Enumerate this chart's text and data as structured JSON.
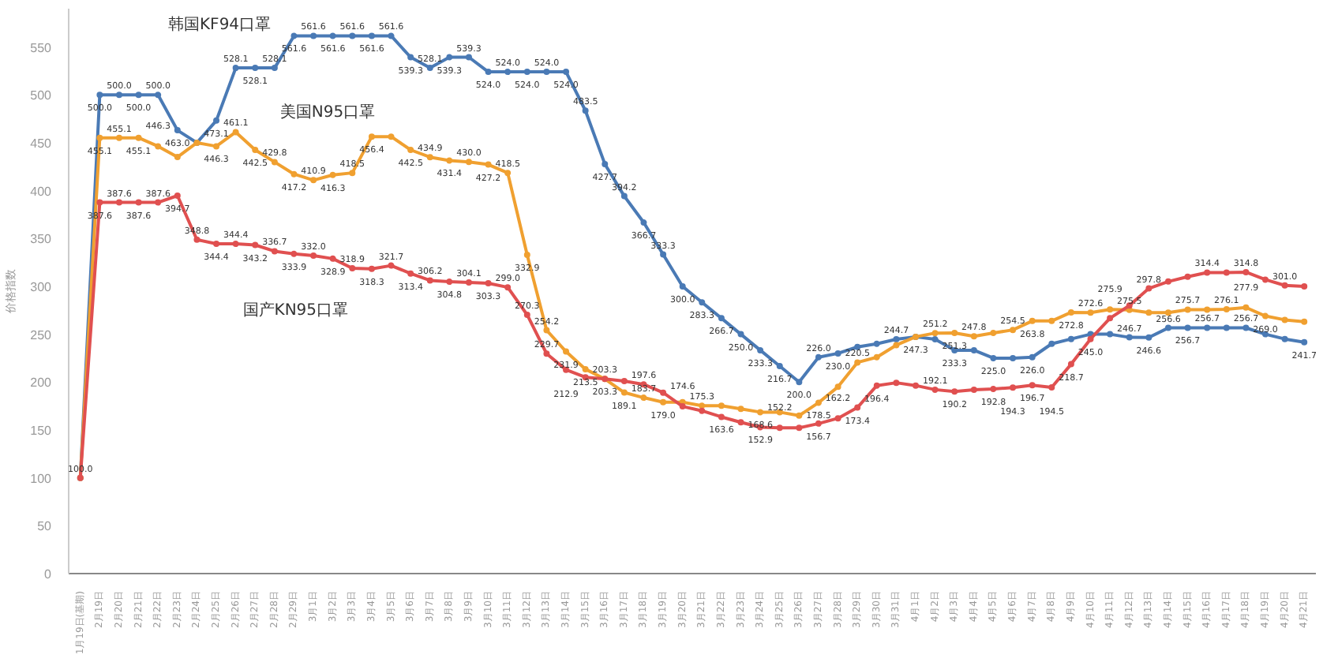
{
  "chart_data": {
    "type": "line",
    "ylabel": "价格指数",
    "categories": [
      "1月19日(基期)",
      "2月19日",
      "2月20日",
      "2月21日",
      "2月22日",
      "2月23日",
      "2月24日",
      "2月25日",
      "2月26日",
      "2月27日",
      "2月28日",
      "2月29日",
      "3月1日",
      "3月2日",
      "3月3日",
      "3月4日",
      "3月5日",
      "3月6日",
      "3月7日",
      "3月8日",
      "3月9日",
      "3月10日",
      "3月11日",
      "3月12日",
      "3月13日",
      "3月14日",
      "3月15日",
      "3月16日",
      "3月17日",
      "3月18日",
      "3月19日",
      "3月20日",
      "3月21日",
      "3月22日",
      "3月23日",
      "3月24日",
      "3月25日",
      "3月26日",
      "3月27日",
      "3月28日",
      "3月29日",
      "3月30日",
      "3月31日",
      "4月1日",
      "4月2日",
      "4月3日",
      "4月4日",
      "4月5日",
      "4月6日",
      "4月7日",
      "4月8日",
      "4月9日",
      "4月10日",
      "4月11日",
      "4月12日",
      "4月13日",
      "4月14日",
      "4月15日",
      "4月16日",
      "4月17日",
      "4月18日",
      "4月19日",
      "4月20日",
      "4月21日"
    ],
    "series": [
      {
        "name": "韩国KF94口罩",
        "color": "#4a7ab5",
        "values": [
          100.0,
          500.0,
          500.0,
          500.0,
          500.0,
          463.0,
          450.0,
          473.1,
          528.1,
          528.1,
          528.1,
          561.6,
          561.6,
          561.6,
          561.6,
          561.6,
          561.6,
          539.3,
          528.1,
          539.3,
          539.3,
          524.0,
          524.0,
          524.0,
          524.0,
          524.0,
          483.5,
          427.7,
          394.2,
          366.7,
          333.3,
          300.0,
          283.3,
          266.7,
          250.0,
          233.3,
          216.7,
          200.0,
          226.0,
          230.0,
          236.7,
          240.0,
          244.7,
          247.3,
          244.7,
          233.3,
          233.3,
          225.0,
          225.0,
          226.0,
          240.0,
          245.0,
          250.0,
          250.0,
          246.7,
          246.6,
          256.6,
          256.7,
          256.7,
          256.7,
          256.7,
          250.0,
          245.0,
          241.7
        ],
        "value_labels": [
          "100.0",
          "500.0",
          "500.0",
          "500.0",
          "500.0",
          "463.0",
          null,
          "473.1",
          "528.1",
          "528.1",
          "528.1",
          "561.6",
          "561.6",
          "561.6",
          "561.6",
          "561.6",
          "561.6",
          "539.3",
          "528.1",
          "539.3",
          "539.3",
          "524.0",
          "524.0",
          "524.0",
          "524.0",
          "524.0",
          "483.5",
          "427.7",
          "394.2",
          "366.7",
          "333.3",
          "300.0",
          "283.3",
          "266.7",
          "250.0",
          "233.3",
          "216.7",
          "200.0",
          "226.0",
          "230.0",
          null,
          null,
          "244.7",
          "247.3",
          null,
          "233.3",
          null,
          "225.0",
          null,
          "226.0",
          null,
          null,
          null,
          null,
          "246.7",
          "246.6",
          "256.6",
          "256.7",
          "256.7",
          null,
          "256.7",
          null,
          null,
          "241.7"
        ]
      },
      {
        "name": "美国N95口罩",
        "color": "#f0a030",
        "values": [
          100.0,
          455.1,
          455.1,
          455.1,
          446.3,
          435.0,
          450.0,
          446.3,
          461.1,
          442.5,
          429.8,
          417.2,
          410.9,
          416.3,
          418.5,
          456.4,
          456.4,
          442.5,
          434.9,
          431.4,
          430.0,
          427.2,
          418.5,
          332.9,
          254.2,
          231.9,
          213.5,
          203.3,
          189.1,
          183.7,
          179.0,
          179.0,
          175.3,
          175.3,
          172.0,
          168.6,
          168.6,
          165.0,
          178.5,
          195.0,
          220.5,
          226.0,
          238.6,
          247.3,
          251.2,
          251.3,
          247.8,
          251.3,
          254.5,
          263.8,
          263.8,
          272.8,
          272.6,
          275.9,
          275.5,
          272.6,
          272.6,
          275.7,
          275.7,
          276.1,
          277.9,
          269.0,
          265.0,
          263.0
        ],
        "value_labels": [
          null,
          "455.1",
          "455.1",
          "455.1",
          "446.3",
          null,
          null,
          "446.3",
          "461.1",
          "442.5",
          "429.8",
          "417.2",
          "410.9",
          "416.3",
          "418.5",
          "456.4",
          null,
          "442.5",
          "434.9",
          "431.4",
          "430.0",
          "427.2",
          "418.5",
          "332.9",
          "254.2",
          "231.9",
          "213.5",
          "203.3",
          "189.1",
          "183.7",
          "179.0",
          null,
          "175.3",
          null,
          null,
          "168.6",
          null,
          null,
          "178.5",
          null,
          "220.5",
          null,
          null,
          null,
          "251.2",
          "251.3",
          "247.8",
          null,
          "254.5",
          "263.8",
          null,
          "272.8",
          "272.6",
          "275.9",
          "275.5",
          null,
          null,
          "275.7",
          null,
          "276.1",
          "277.9",
          "269.0",
          null,
          null
        ]
      },
      {
        "name": "国产KN95口罩",
        "color": "#e05050",
        "values": [
          100.0,
          387.6,
          387.6,
          387.6,
          387.6,
          394.7,
          348.8,
          344.4,
          344.4,
          343.2,
          336.7,
          333.9,
          332.0,
          328.9,
          318.9,
          318.3,
          321.7,
          313.4,
          306.2,
          304.8,
          304.1,
          303.3,
          299.0,
          270.3,
          229.7,
          212.9,
          205.0,
          203.3,
          201.0,
          197.6,
          189.0,
          174.6,
          170.0,
          163.6,
          158.0,
          152.9,
          152.2,
          152.2,
          156.7,
          162.2,
          173.4,
          196.4,
          199.3,
          196.4,
          192.1,
          190.2,
          192.0,
          192.8,
          194.3,
          196.7,
          194.5,
          218.7,
          245.0,
          266.7,
          280.0,
          297.8,
          305.0,
          310.0,
          314.4,
          314.4,
          314.8,
          307.0,
          301.0,
          300.0
        ],
        "value_labels": [
          null,
          "387.6",
          "387.6",
          "387.6",
          "387.6",
          "394.7",
          "348.8",
          "344.4",
          "344.4",
          "343.2",
          "336.7",
          "333.9",
          "332.0",
          "328.9",
          "318.9",
          "318.3",
          "321.7",
          "313.4",
          "306.2",
          "304.8",
          "304.1",
          "303.3",
          "299.0",
          "270.3",
          "229.7",
          "212.9",
          null,
          "203.3",
          null,
          "197.6",
          null,
          "174.6",
          null,
          "163.6",
          null,
          "152.9",
          "152.2",
          null,
          "156.7",
          "162.2",
          "173.4",
          "196.4",
          null,
          null,
          "192.1",
          "190.2",
          null,
          "192.8",
          "194.3",
          "196.7",
          "194.5",
          "218.7",
          "245.0",
          null,
          null,
          "297.8",
          null,
          null,
          "314.4",
          null,
          "314.8",
          null,
          "301.0",
          null
        ]
      }
    ],
    "ylim": [
      0,
      590
    ],
    "yticks": [
      0,
      50,
      100,
      150,
      200,
      250,
      300,
      350,
      400,
      450,
      500,
      550
    ],
    "marker": "circle",
    "line_style": "solid"
  }
}
